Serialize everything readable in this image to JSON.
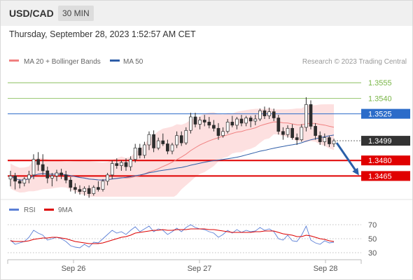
{
  "header": {
    "symbol": "USD/CAD",
    "timeframe": "30 MIN",
    "timestamp": "Thursday, September 28, 2023 1:52:57 AM CET"
  },
  "colors": {
    "ma20": "#f08080",
    "bollinger_fill": "#fde0e0",
    "ma50": "#2f5ea8",
    "resistance": "#7ab648",
    "pivot": "#2b6cc9",
    "support": "#e00000",
    "current": "#333333",
    "bull_candle": "#ffffff",
    "bear_candle": "#2d2d2d",
    "arrow": "#2a5fa8",
    "rsi": "#5b7fd6",
    "rsi_ma": "#dd0000"
  },
  "chart_data": [
    {
      "type": "candlestick",
      "title": "USD/CAD",
      "legend": [
        {
          "name": "MA 20 + Bollinger Bands",
          "color": "#f08080"
        },
        {
          "name": "MA 50",
          "color": "#2f5ea8"
        }
      ],
      "legend_placement": "top-left",
      "watermark": "Research © 2023 Trading Central",
      "x_ticks": [
        "Sep 26",
        "Sep 27",
        "Sep 28"
      ],
      "ylim": [
        1.3445,
        1.357
      ],
      "levels": [
        {
          "value": 1.3555,
          "label": "1.3555",
          "kind": "resistance"
        },
        {
          "value": 1.354,
          "label": "1.3540",
          "kind": "resistance"
        },
        {
          "value": 1.3525,
          "label": "1.3525",
          "kind": "pivot"
        },
        {
          "value": 1.3499,
          "label": "1.3499",
          "kind": "current"
        },
        {
          "value": 1.348,
          "label": "1.3480",
          "kind": "support"
        },
        {
          "value": 1.3465,
          "label": "1.3465",
          "kind": "support"
        }
      ],
      "arrow": {
        "from": 1.3499,
        "to": 1.3465,
        "direction": "down"
      },
      "candles": [
        [
          1.3462,
          1.347,
          1.3455,
          1.3465
        ],
        [
          1.3465,
          1.3468,
          1.3452,
          1.346
        ],
        [
          1.346,
          1.3462,
          1.3453,
          1.3458
        ],
        [
          1.3458,
          1.3464,
          1.3455,
          1.3462
        ],
        [
          1.3462,
          1.347,
          1.3458,
          1.3466
        ],
        [
          1.3466,
          1.3486,
          1.3462,
          1.3481
        ],
        [
          1.3481,
          1.3488,
          1.347,
          1.3476
        ],
        [
          1.3476,
          1.3486,
          1.3466,
          1.347
        ],
        [
          1.347,
          1.3474,
          1.3458,
          1.3463
        ],
        [
          1.3463,
          1.3468,
          1.3455,
          1.3465
        ],
        [
          1.3465,
          1.3471,
          1.346,
          1.3468
        ],
        [
          1.3468,
          1.3472,
          1.3462,
          1.3466
        ],
        [
          1.3466,
          1.347,
          1.3458,
          1.3461
        ],
        [
          1.3461,
          1.3464,
          1.345,
          1.3454
        ],
        [
          1.3454,
          1.3458,
          1.3448,
          1.3452
        ],
        [
          1.3452,
          1.3456,
          1.3447,
          1.345
        ],
        [
          1.345,
          1.3455,
          1.3446,
          1.3453
        ],
        [
          1.3453,
          1.3456,
          1.3444,
          1.3448
        ],
        [
          1.3448,
          1.3456,
          1.3446,
          1.3454
        ],
        [
          1.3454,
          1.346,
          1.345,
          1.3452
        ],
        [
          1.3452,
          1.3462,
          1.345,
          1.346
        ],
        [
          1.346,
          1.3468,
          1.3456,
          1.3466
        ],
        [
          1.3466,
          1.348,
          1.3462,
          1.3477
        ],
        [
          1.3477,
          1.3482,
          1.3472,
          1.3475
        ],
        [
          1.3475,
          1.348,
          1.347,
          1.3478
        ],
        [
          1.3478,
          1.3482,
          1.347,
          1.3474
        ],
        [
          1.3474,
          1.3484,
          1.347,
          1.3481
        ],
        [
          1.3481,
          1.3496,
          1.3478,
          1.3492
        ],
        [
          1.3492,
          1.3496,
          1.3482,
          1.3485
        ],
        [
          1.3485,
          1.3498,
          1.3482,
          1.3495
        ],
        [
          1.3495,
          1.3508,
          1.349,
          1.3505
        ],
        [
          1.3505,
          1.3509,
          1.3488,
          1.3492
        ],
        [
          1.3492,
          1.3502,
          1.349,
          1.3499
        ],
        [
          1.3499,
          1.3506,
          1.3494,
          1.3496
        ],
        [
          1.3496,
          1.35,
          1.3486,
          1.3489
        ],
        [
          1.3489,
          1.3497,
          1.3486,
          1.3495
        ],
        [
          1.3495,
          1.3508,
          1.3492,
          1.3504
        ],
        [
          1.3504,
          1.3508,
          1.3494,
          1.3497
        ],
        [
          1.3497,
          1.3512,
          1.3495,
          1.3509
        ],
        [
          1.3509,
          1.3526,
          1.3506,
          1.3522
        ],
        [
          1.3522,
          1.3526,
          1.3512,
          1.3515
        ],
        [
          1.3515,
          1.3522,
          1.351,
          1.3519
        ],
        [
          1.3519,
          1.3524,
          1.3513,
          1.3517
        ],
        [
          1.3517,
          1.3522,
          1.3511,
          1.3514
        ],
        [
          1.3514,
          1.3519,
          1.3508,
          1.3511
        ],
        [
          1.3511,
          1.3516,
          1.35,
          1.3504
        ],
        [
          1.3504,
          1.3512,
          1.3502,
          1.3508
        ],
        [
          1.3508,
          1.352,
          1.3506,
          1.3517
        ],
        [
          1.3517,
          1.3523,
          1.3512,
          1.3514
        ],
        [
          1.3514,
          1.3522,
          1.351,
          1.352
        ],
        [
          1.352,
          1.3524,
          1.3513,
          1.3516
        ],
        [
          1.3516,
          1.3523,
          1.3513,
          1.3521
        ],
        [
          1.3521,
          1.3523,
          1.3512,
          1.3518
        ],
        [
          1.3518,
          1.3524,
          1.3514,
          1.352
        ],
        [
          1.352,
          1.353,
          1.3518,
          1.3528
        ],
        [
          1.3528,
          1.3532,
          1.352,
          1.3523
        ],
        [
          1.3523,
          1.3531,
          1.352,
          1.3527
        ],
        [
          1.3527,
          1.353,
          1.3518,
          1.3521
        ],
        [
          1.3521,
          1.3524,
          1.3505,
          1.3508
        ],
        [
          1.3508,
          1.3512,
          1.35,
          1.3505
        ],
        [
          1.3505,
          1.3514,
          1.3502,
          1.3511
        ],
        [
          1.3511,
          1.3515,
          1.35,
          1.3502
        ],
        [
          1.3502,
          1.3506,
          1.3495,
          1.35
        ],
        [
          1.35,
          1.3515,
          1.3498,
          1.3512
        ],
        [
          1.3512,
          1.3541,
          1.3508,
          1.3534
        ],
        [
          1.3534,
          1.3538,
          1.351,
          1.3513
        ],
        [
          1.3513,
          1.3516,
          1.35,
          1.3504
        ],
        [
          1.3504,
          1.3508,
          1.3495,
          1.3498
        ],
        [
          1.3498,
          1.3506,
          1.3494,
          1.3502
        ],
        [
          1.3502,
          1.3504,
          1.3493,
          1.3496
        ],
        [
          1.3496,
          1.3501,
          1.3493,
          1.3499
        ]
      ]
    },
    {
      "type": "line",
      "legend": [
        {
          "name": "RSI",
          "color": "#5b7fd6"
        },
        {
          "name": "9MA",
          "color": "#dd0000"
        }
      ],
      "legend_placement": "top-left",
      "y_ticks": [
        70,
        50,
        30
      ],
      "ylim": [
        20,
        80
      ],
      "series": [
        {
          "name": "RSI",
          "values": [
            48,
            42,
            44,
            46,
            52,
            62,
            58,
            55,
            48,
            50,
            52,
            50,
            46,
            40,
            38,
            37,
            42,
            38,
            45,
            44,
            50,
            56,
            62,
            58,
            60,
            56,
            62,
            67,
            60,
            64,
            68,
            60,
            64,
            62,
            56,
            60,
            65,
            60,
            66,
            70,
            66,
            64,
            63,
            60,
            58,
            52,
            56,
            62,
            58,
            63,
            59,
            62,
            60,
            61,
            66,
            62,
            64,
            60,
            50,
            48,
            55,
            47,
            46,
            55,
            68,
            48,
            44,
            42,
            47,
            44,
            45
          ]
        },
        {
          "name": "9MA",
          "values": [
            47,
            46,
            46,
            46,
            47,
            49,
            50,
            51,
            51,
            52,
            52,
            51,
            50,
            48,
            46,
            45,
            44,
            43,
            43,
            43,
            44,
            46,
            48,
            50,
            52,
            53,
            55,
            58,
            59,
            60,
            61,
            62,
            62,
            63,
            62,
            62,
            63,
            63,
            63,
            64,
            64,
            64,
            64,
            63,
            63,
            62,
            61,
            60,
            59,
            59,
            59,
            59,
            59,
            60,
            60,
            61,
            61,
            61,
            59,
            57,
            56,
            55,
            53,
            53,
            55,
            54,
            52,
            50,
            49,
            47,
            46
          ]
        }
      ]
    }
  ]
}
